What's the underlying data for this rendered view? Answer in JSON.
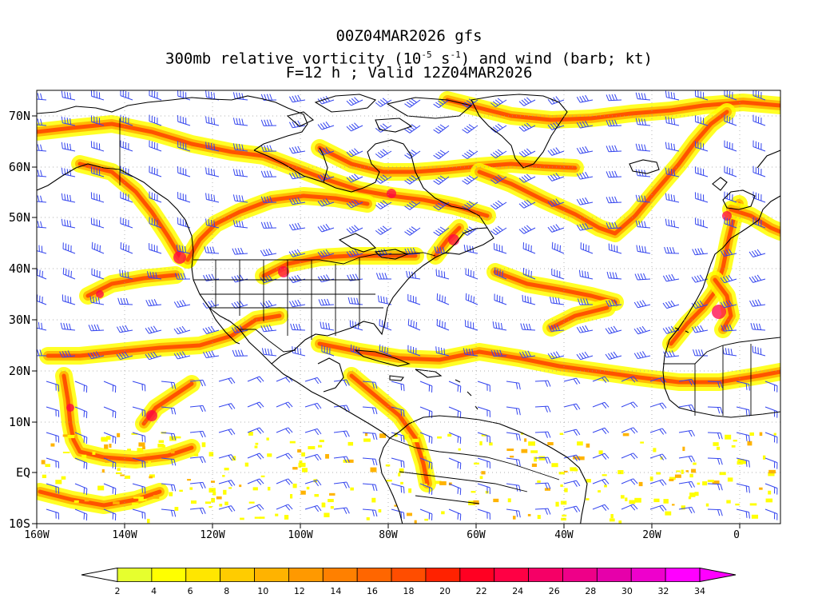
{
  "title": {
    "line1": "00Z04MAR2026 gfs",
    "line2_pre": "300mb relative vorticity (10",
    "line2_exp1": "-5",
    "line2_mid": " s",
    "line2_exp2": "-1",
    "line2_post": ") and wind (barb; kt)",
    "line3": "F=12 h ; Valid 12Z04MAR2026"
  },
  "lat_labels": [
    "70N",
    "60N",
    "50N",
    "40N",
    "30N",
    "20N",
    "10N",
    "EQ",
    "10S"
  ],
  "lon_labels": [
    "160W",
    "140W",
    "120W",
    "100W",
    "80W",
    "60W",
    "40W",
    "20W",
    "0"
  ],
  "colorbar": {
    "labels": [
      "2",
      "4",
      "6",
      "8",
      "10",
      "12",
      "14",
      "16",
      "18",
      "20",
      "22",
      "24",
      "26",
      "28",
      "30",
      "32",
      "34"
    ],
    "colors": [
      "#e6ff2e",
      "#ffff00",
      "#ffe600",
      "#ffcc00",
      "#ffb300",
      "#ff9900",
      "#ff8000",
      "#ff6600",
      "#ff4d00",
      "#ff2200",
      "#ff0022",
      "#ff0044",
      "#f50066",
      "#ee0088",
      "#e600aa",
      "#ee00cc",
      "#ff00ff"
    ]
  },
  "colors": {
    "barb": "#3344ee",
    "coast": "#000000",
    "grid": "#999999",
    "band_low": "#ffff00",
    "band_mid": "#ffb300",
    "band_high": "#ff4d00",
    "band_peak": "#ff0044"
  }
}
